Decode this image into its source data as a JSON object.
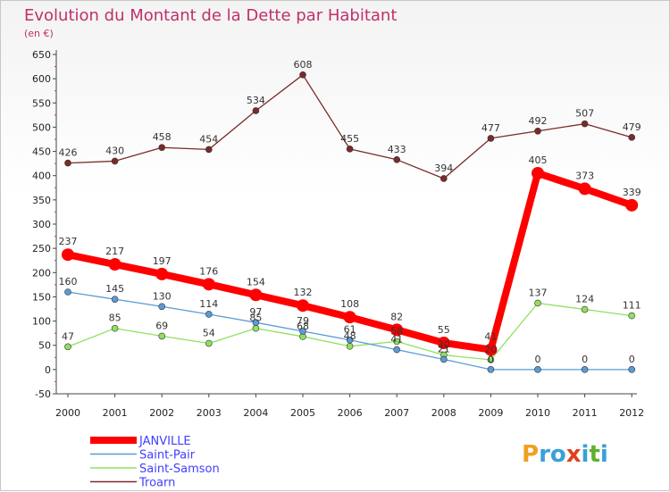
{
  "chart_data": {
    "type": "line",
    "title": "Evolution du Montant de la Dette par Habitant",
    "subtitle": "(en €)",
    "xlabel": "",
    "ylabel": "",
    "categories": [
      "2000",
      "2001",
      "2002",
      "2003",
      "2004",
      "2005",
      "2006",
      "2007",
      "2008",
      "2009",
      "2010",
      "2011",
      "2012"
    ],
    "ylim": [
      -50,
      650
    ],
    "yticks": [
      -50,
      0,
      50,
      100,
      150,
      200,
      250,
      300,
      350,
      400,
      450,
      500,
      550,
      600,
      650
    ],
    "grid": false,
    "legend_position": "bottom-left",
    "series": [
      {
        "name": "JANVILLE",
        "color": "#ff0000",
        "values": [
          237,
          217,
          197,
          176,
          154,
          132,
          108,
          82,
          55,
          41,
          405,
          373,
          339
        ]
      },
      {
        "name": "Saint-Pair",
        "color": "#5b9bd5",
        "values": [
          160,
          145,
          130,
          114,
          97,
          79,
          61,
          41,
          21,
          0,
          0,
          0,
          0
        ]
      },
      {
        "name": "Saint-Samson",
        "color": "#90e060",
        "values": [
          47,
          85,
          69,
          54,
          85,
          68,
          48,
          58,
          30,
          20,
          137,
          124,
          111
        ]
      },
      {
        "name": "Troarn",
        "color": "#7a2a2a",
        "values": [
          426,
          430,
          458,
          454,
          534,
          608,
          455,
          433,
          394,
          477,
          492,
          507,
          479
        ]
      }
    ]
  },
  "brand": "Proxiti",
  "brand_colors": [
    "#f0a020",
    "#3aa0d8",
    "#3aa0d8",
    "#e04020",
    "#3aa0d8",
    "#60b030",
    "#3aa0d8"
  ]
}
